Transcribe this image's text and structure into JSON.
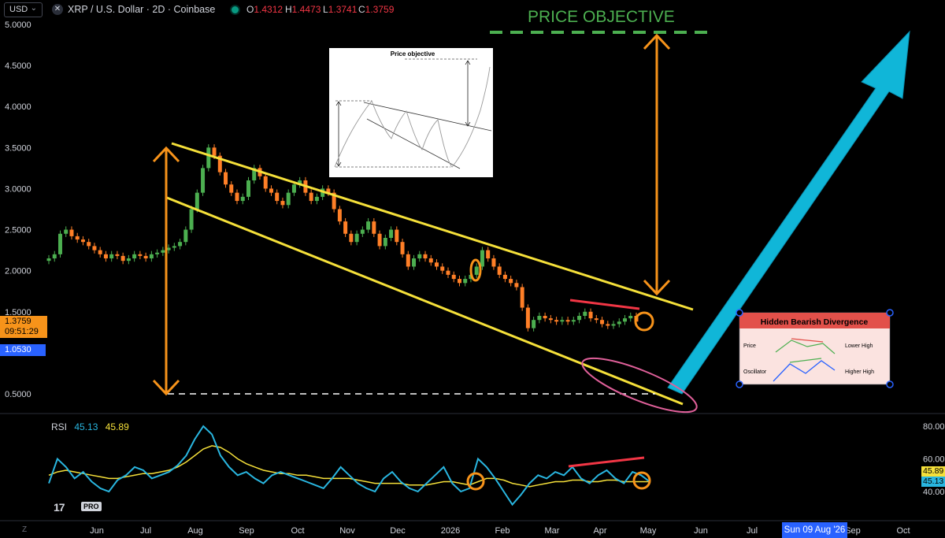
{
  "header": {
    "currency": "USD",
    "symbol_title": "XRP / U.S. Dollar · 2D · Coinbase",
    "ohlc": [
      {
        "k": "O",
        "v": "1.4312"
      },
      {
        "k": "H",
        "v": "1.4473"
      },
      {
        "k": "L",
        "v": "1.3741"
      },
      {
        "k": "C",
        "v": "1.3759"
      }
    ]
  },
  "price_tags": {
    "current_price": "1.3759",
    "countdown": "09:51:29",
    "blue_price": "1.0530"
  },
  "rsi_header": {
    "label": "RSI",
    "value1": "45.13",
    "value2": "45.89"
  },
  "rsi_tags": {
    "ma": "45.89",
    "rsi": "45.13"
  },
  "crosshair_date": "Sun 09 Aug '26",
  "annotations": {
    "price_objective": "PRICE OBJECTIVE",
    "inset_title": "Price objective",
    "divergence_title": "Hidden Bearish Divergence",
    "div_price": "Price",
    "div_oscillator": "Oscillator",
    "div_lower_high": "Lower High",
    "div_higher_high": "Higher High"
  },
  "logo": {
    "mark": "17",
    "badge": "PRO"
  },
  "colors": {
    "up": "#4caf50",
    "down": "#ff7f27",
    "channel": "#f5e03a",
    "arrow_orange": "#f7931a",
    "big_arrow": "#10b6d8",
    "objective": "#4caf50",
    "rsi_line": "#29b6e0",
    "rsi_ma": "#f5e03a",
    "divergence_line": "#f23645",
    "ellipse": "#e0609a"
  },
  "chart_data": [
    {
      "type": "candlestick",
      "title": "XRP / U.S. Dollar · 2D · Coinbase",
      "y_ticks": [
        "5.0000",
        "4.5000",
        "4.0000",
        "3.5000",
        "3.0000",
        "2.5000",
        "2.0000",
        "1.5000",
        "0.5000"
      ],
      "x_ticks": [
        "Jun",
        "Jul",
        "Aug",
        "Sep",
        "Oct",
        "Nov",
        "Dec",
        "2026",
        "Feb",
        "Mar",
        "Apr",
        "May",
        "Jun",
        "Jul",
        "Sep",
        "Oct"
      ],
      "ylim": [
        0.35,
        5.05
      ],
      "closes_approx": [
        2.15,
        2.2,
        2.45,
        2.5,
        2.42,
        2.38,
        2.35,
        2.3,
        2.25,
        2.2,
        2.15,
        2.2,
        2.18,
        2.12,
        2.15,
        2.2,
        2.18,
        2.15,
        2.2,
        2.22,
        2.25,
        2.28,
        2.3,
        2.35,
        2.5,
        2.75,
        2.95,
        3.25,
        3.5,
        3.4,
        3.2,
        3.05,
        2.95,
        2.85,
        2.9,
        3.1,
        3.25,
        3.15,
        3.0,
        2.95,
        2.85,
        2.8,
        2.95,
        3.05,
        3.1,
        2.95,
        2.85,
        2.9,
        3.0,
        2.95,
        2.75,
        2.6,
        2.45,
        2.35,
        2.45,
        2.5,
        2.6,
        2.45,
        2.3,
        2.4,
        2.5,
        2.35,
        2.2,
        2.05,
        2.15,
        2.2,
        2.15,
        2.1,
        2.05,
        2.0,
        1.95,
        1.9,
        1.85,
        1.9,
        1.95,
        2.05,
        2.25,
        2.15,
        2.05,
        1.95,
        1.9,
        1.85,
        1.8,
        1.55,
        1.3,
        1.4,
        1.45,
        1.42,
        1.4,
        1.38,
        1.4,
        1.38,
        1.4,
        1.45,
        1.5,
        1.42,
        1.4,
        1.35,
        1.33,
        1.35,
        1.38,
        1.42,
        1.45,
        1.38
      ]
    },
    {
      "type": "line",
      "title": "RSI",
      "y_ticks": [
        "80.00",
        "60.00",
        "40.00"
      ],
      "series": [
        {
          "name": "RSI",
          "values": [
            45,
            60,
            55,
            48,
            52,
            46,
            42,
            40,
            47,
            50,
            55,
            53,
            48,
            50,
            52,
            56,
            62,
            72,
            80,
            75,
            62,
            55,
            50,
            52,
            48,
            45,
            50,
            52,
            50,
            48,
            46,
            44,
            42,
            48,
            55,
            50,
            45,
            42,
            40,
            48,
            52,
            46,
            42,
            40,
            45,
            50,
            55,
            45,
            40,
            42,
            60,
            55,
            48,
            40,
            32,
            38,
            45,
            50,
            48,
            52,
            50,
            55,
            48,
            45,
            50,
            53,
            48,
            45,
            52,
            50,
            46
          ]
        },
        {
          "name": "RSI MA",
          "values": [
            50,
            52,
            53,
            52,
            51,
            50,
            49,
            48,
            48,
            49,
            50,
            51,
            51,
            52,
            53,
            55,
            58,
            62,
            66,
            68,
            67,
            64,
            60,
            57,
            55,
            53,
            52,
            51,
            51,
            50,
            50,
            49,
            48,
            48,
            48,
            48,
            47,
            46,
            45,
            45,
            45,
            45,
            44,
            44,
            44,
            45,
            46,
            46,
            45,
            44,
            46,
            48,
            48,
            47,
            45,
            44,
            43,
            44,
            45,
            46,
            46,
            47,
            47,
            46,
            46,
            47,
            47,
            46,
            46,
            46,
            46
          ]
        }
      ],
      "ylim": [
        30,
        85
      ]
    }
  ]
}
